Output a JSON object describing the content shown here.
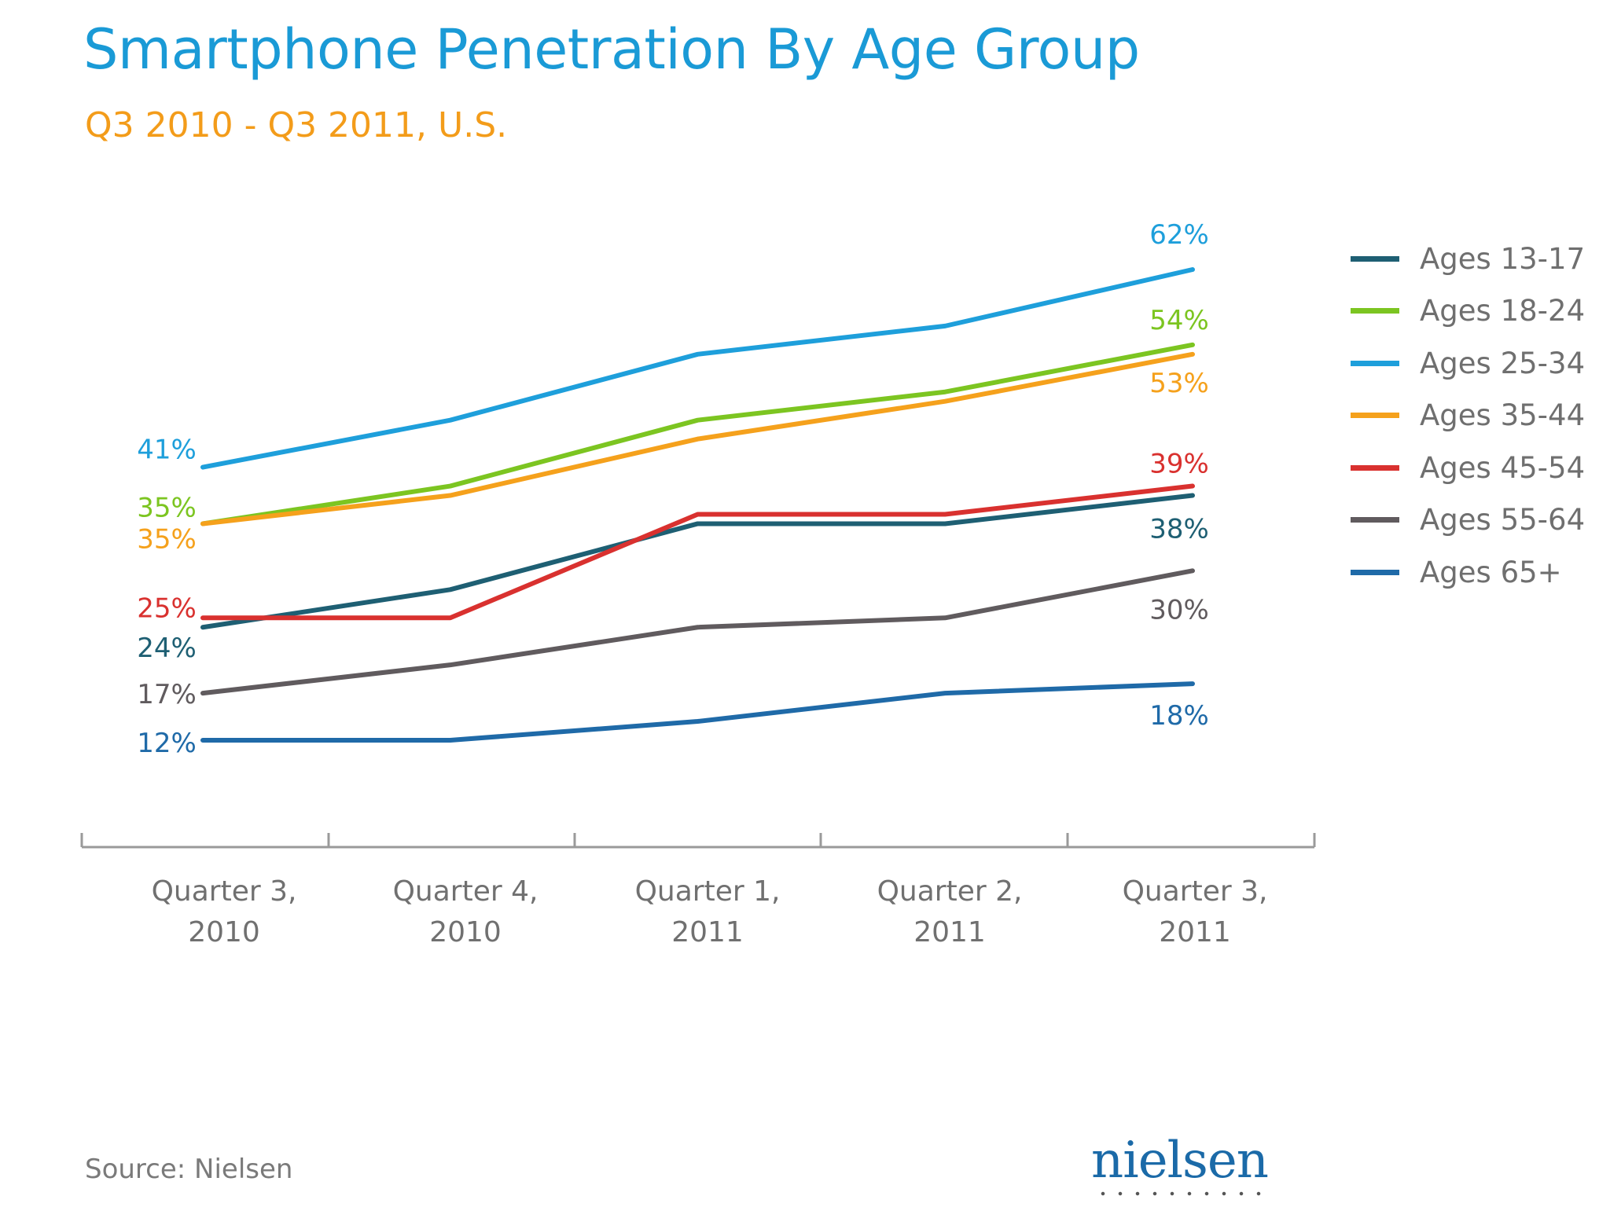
{
  "header": {
    "title": "Smartphone Penetration By Age Group",
    "subtitle": "Q3 2010 - Q3 2011, U.S."
  },
  "footer": {
    "source": "Source: Nielsen",
    "logo_text": "nielsen"
  },
  "chart_data": {
    "type": "line",
    "title": "Smartphone Penetration By Age Group",
    "subtitle": "Q3 2010 - Q3 2011, U.S.",
    "xlabel": "",
    "ylabel": "",
    "ylim": [
      0,
      75
    ],
    "grid": false,
    "legend_position": "right",
    "categories": [
      [
        "Quarter 3,",
        "2010"
      ],
      [
        "Quarter 4,",
        "2010"
      ],
      [
        "Quarter 1,",
        "2011"
      ],
      [
        "Quarter 2,",
        "2011"
      ],
      [
        "Quarter 3,",
        "2011"
      ]
    ],
    "series": [
      {
        "name": "Ages 13-17",
        "color": "#1e5f73",
        "values": [
          24,
          28,
          35,
          35,
          38
        ],
        "start_label": "24%",
        "end_label": "38%"
      },
      {
        "name": "Ages 18-24",
        "color": "#7cc521",
        "values": [
          35,
          39,
          46,
          49,
          54
        ],
        "start_label": "35%",
        "end_label": "54%"
      },
      {
        "name": "Ages 25-34",
        "color": "#1e9fdb",
        "values": [
          41,
          46,
          53,
          56,
          62
        ],
        "start_label": "41%",
        "end_label": "62%"
      },
      {
        "name": "Ages 35-44",
        "color": "#f5a11c",
        "values": [
          35,
          38,
          44,
          48,
          53
        ],
        "start_label": "35%",
        "end_label": "53%"
      },
      {
        "name": "Ages 45-54",
        "color": "#d9312f",
        "values": [
          25,
          25,
          36,
          36,
          39
        ],
        "start_label": "25%",
        "end_label": "39%"
      },
      {
        "name": "Ages 55-64",
        "color": "#605b5e",
        "values": [
          17,
          20,
          24,
          25,
          30
        ],
        "start_label": "17%",
        "end_label": "30%"
      },
      {
        "name": "Ages 65+",
        "color": "#1f6aa8",
        "values": [
          12,
          12,
          14,
          17,
          18
        ],
        "start_label": "12%",
        "end_label": "18%"
      }
    ]
  }
}
